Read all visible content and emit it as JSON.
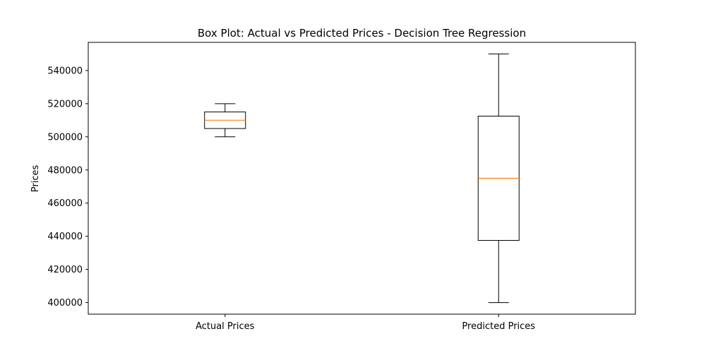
{
  "chart_data": {
    "type": "box",
    "title": "Box Plot: Actual vs Predicted Prices - Decision Tree Regression",
    "xlabel": "",
    "ylabel": "Prices",
    "categories": [
      "Actual Prices",
      "Predicted Prices"
    ],
    "boxes": [
      {
        "name": "Actual Prices",
        "min": 500000,
        "q1": 505000,
        "median": 510000,
        "q3": 515000,
        "max": 520000
      },
      {
        "name": "Predicted Prices",
        "min": 400000,
        "q1": 437500,
        "median": 475000,
        "q3": 512500,
        "max": 550000
      }
    ],
    "ylim": [
      393000,
      557000
    ],
    "yticks": [
      400000,
      420000,
      440000,
      460000,
      480000,
      500000,
      520000,
      540000
    ],
    "ytick_labels": [
      "400000",
      "420000",
      "440000",
      "460000",
      "480000",
      "500000",
      "520000",
      "540000"
    ],
    "grid": false,
    "colors": {
      "box": "#000000",
      "median": "#ff7f0e",
      "background": "#ffffff"
    }
  }
}
